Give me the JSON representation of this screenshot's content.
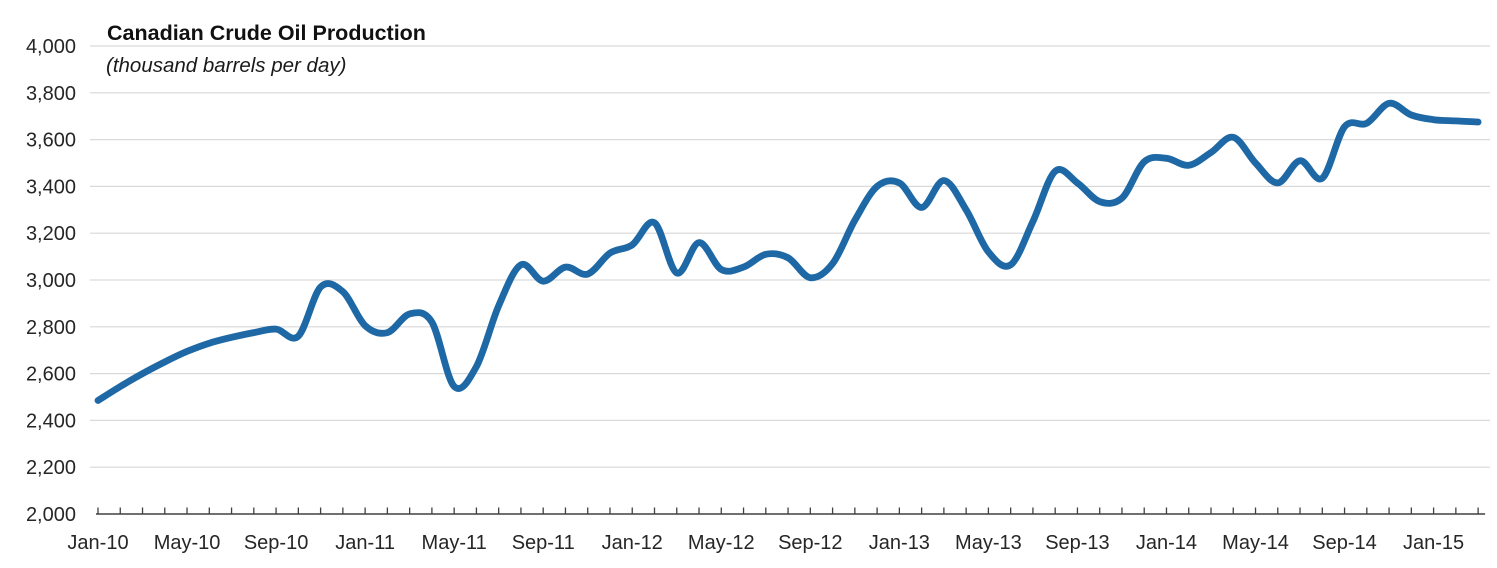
{
  "header": {
    "title": "Canadian Crude Oil Production",
    "subtitle": "(thousand barrels per day)"
  },
  "chart_data": {
    "type": "line",
    "title": "Canadian Crude Oil Production",
    "subtitle": "(thousand barrels per day)",
    "xlabel": "",
    "ylabel": "",
    "legend_position": "none",
    "grid": "horizontal",
    "ylim": [
      2000,
      4000
    ],
    "y_ticks": [
      2000,
      2200,
      2400,
      2600,
      2800,
      3000,
      3200,
      3400,
      3600,
      3800,
      4000
    ],
    "x_tick_labels": [
      "Jan-10",
      "May-10",
      "Sep-10",
      "Jan-11",
      "May-11",
      "Sep-11",
      "Jan-12",
      "May-12",
      "Sep-12",
      "Jan-13",
      "May-13",
      "Sep-13",
      "Jan-14",
      "May-14",
      "Sep-14",
      "Jan-15"
    ],
    "line_color": "#1E69A5",
    "gridline_color": "#D9D9D9",
    "axis_color": "#404040",
    "x": [
      "Jan-10",
      "Feb-10",
      "Mar-10",
      "Apr-10",
      "May-10",
      "Jun-10",
      "Jul-10",
      "Aug-10",
      "Sep-10",
      "Oct-10",
      "Nov-10",
      "Dec-10",
      "Jan-11",
      "Feb-11",
      "Mar-11",
      "Apr-11",
      "May-11",
      "Jun-11",
      "Jul-11",
      "Aug-11",
      "Sep-11",
      "Oct-11",
      "Nov-11",
      "Dec-11",
      "Jan-12",
      "Feb-12",
      "Mar-12",
      "Apr-12",
      "May-12",
      "Jun-12",
      "Jul-12",
      "Aug-12",
      "Sep-12",
      "Oct-12",
      "Nov-12",
      "Dec-12",
      "Jan-13",
      "Feb-13",
      "Mar-13",
      "Apr-13",
      "May-13",
      "Jun-13",
      "Jul-13",
      "Aug-13",
      "Sep-13",
      "Oct-13",
      "Nov-13",
      "Dec-13",
      "Jan-14",
      "Feb-14",
      "Mar-14",
      "Apr-14",
      "May-14",
      "Jun-14",
      "Jul-14",
      "Aug-14",
      "Sep-14",
      "Oct-14",
      "Nov-14",
      "Dec-14",
      "Jan-15",
      "Feb-15",
      "Mar-15"
    ],
    "values": [
      2485,
      2545,
      2600,
      2650,
      2695,
      2730,
      2755,
      2775,
      2790,
      2760,
      2970,
      2950,
      2805,
      2775,
      2855,
      2820,
      2545,
      2630,
      2890,
      3065,
      2995,
      3055,
      3025,
      3115,
      3150,
      3245,
      3030,
      3160,
      3045,
      3055,
      3110,
      3095,
      3010,
      3070,
      3255,
      3400,
      3415,
      3310,
      3425,
      3300,
      3120,
      3065,
      3250,
      3465,
      3415,
      3335,
      3350,
      3505,
      3520,
      3490,
      3545,
      3610,
      3500,
      3415,
      3510,
      3435,
      3655,
      3670,
      3755,
      3705,
      3685,
      3680,
      3675
    ]
  }
}
